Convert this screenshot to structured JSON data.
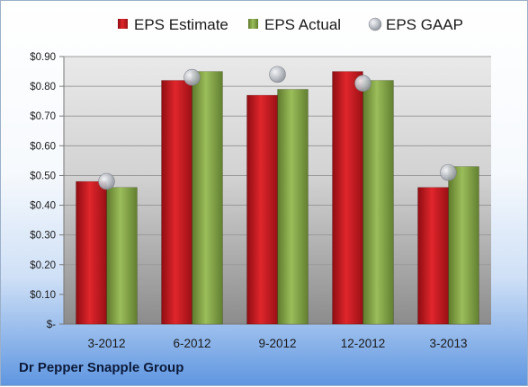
{
  "chart_data": {
    "type": "bar",
    "categories": [
      "3-2012",
      "6-2012",
      "9-2012",
      "12-2012",
      "3-2013"
    ],
    "series": [
      {
        "name": "EPS Estimate",
        "kind": "bar",
        "color": "#c8161d",
        "values": [
          0.48,
          0.82,
          0.77,
          0.85,
          0.46
        ]
      },
      {
        "name": "EPS Actual",
        "kind": "bar",
        "color": "#86a84a",
        "values": [
          0.46,
          0.85,
          0.79,
          0.82,
          0.53
        ]
      },
      {
        "name": "EPS GAAP",
        "kind": "marker",
        "color": "#b4b8bf",
        "values": [
          0.48,
          0.83,
          0.84,
          0.81,
          0.51
        ]
      }
    ],
    "yticks": [
      "$-",
      "$0.10",
      "$0.20",
      "$0.30",
      "$0.40",
      "$0.50",
      "$0.60",
      "$0.70",
      "$0.80",
      "$0.90"
    ],
    "ylim": [
      0,
      0.9
    ],
    "grid": true,
    "legend": "top"
  },
  "footer": {
    "company": "Dr Pepper Snapple Group"
  }
}
